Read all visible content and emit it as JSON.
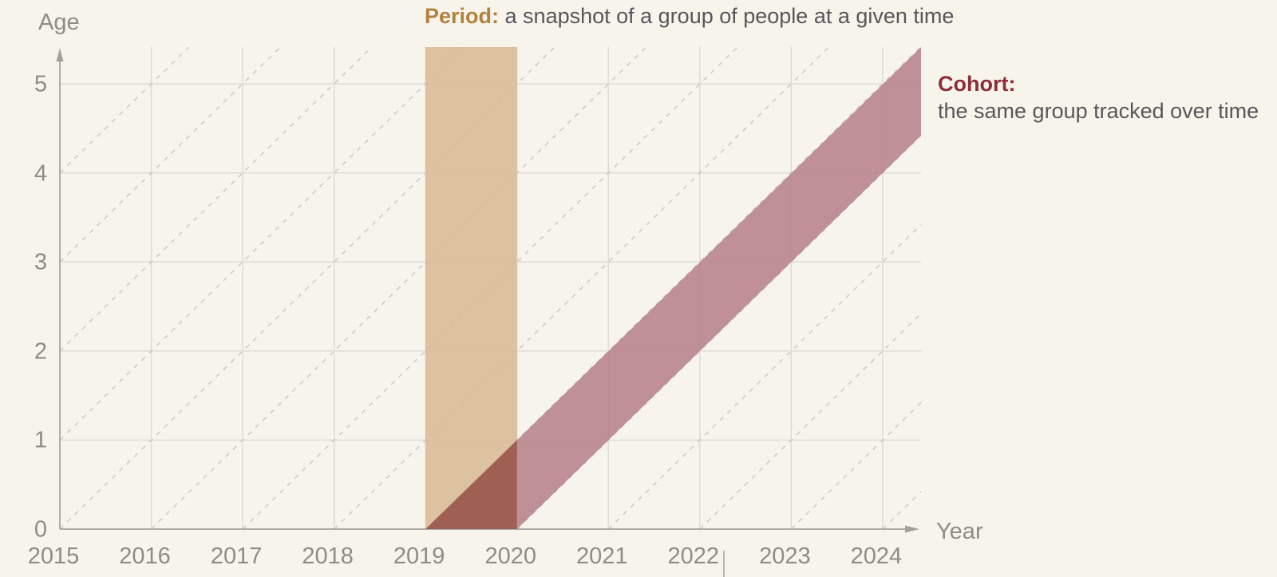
{
  "title": {
    "accent": "Period:",
    "text": "a snapshot of a group of people at a given time",
    "accent_color": "#b3823f"
  },
  "annotation": {
    "accent": "Cohort:",
    "text": "the same group tracked over time",
    "accent_color": "#8e2e3a"
  },
  "axes": {
    "x_title": "Year",
    "y_title": "Age"
  },
  "chart_data": {
    "type": "area",
    "title": "Period: a snapshot of a group of people at a given time",
    "xlabel": "Year",
    "ylabel": "Age",
    "x_ticks": [
      2015,
      2016,
      2017,
      2018,
      2019,
      2020,
      2021,
      2022,
      2023,
      2024
    ],
    "y_ticks": [
      0,
      1,
      2,
      3,
      4,
      5
    ],
    "xlim": [
      2015,
      2024.42
    ],
    "ylim": [
      0,
      5.413
    ],
    "grid": true,
    "diagonal_cohort_lines": {
      "style": "dashed",
      "meaning": "age = year - birth_year (45-degree life lines)",
      "birth_years": [
        2011,
        2012,
        2013,
        2014,
        2015,
        2016,
        2017,
        2018,
        2019,
        2020,
        2021,
        2022,
        2023,
        2024
      ]
    },
    "period_band": {
      "label": "Period",
      "x0": 2019,
      "x1": 2020,
      "color": "#d8bb93"
    },
    "cohort_band": {
      "label": "Cohort",
      "birth_year_from": 2019,
      "birth_year_to": 2020,
      "color": "#b8828b",
      "overlap_color": "#9d5d50"
    },
    "legend_position": "none"
  },
  "colors": {
    "background": "#f7f4ec",
    "grid": "#dcdad3",
    "dashed_line": "#c9c7c1",
    "axis": "#a3a19c",
    "tick_text": "#8d8c87",
    "body_text": "#57565a"
  }
}
